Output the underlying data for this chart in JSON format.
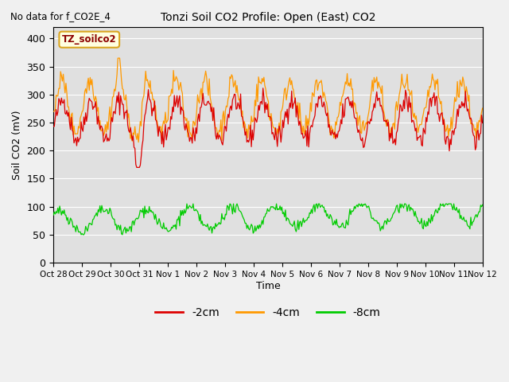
{
  "title": "Tonzi Soil CO2 Profile: Open (East) CO2",
  "subtitle": "No data for f_CO2E_4",
  "ylabel": "Soil CO2 (mV)",
  "xlabel": "Time",
  "legend_label": "TZ_soilco2",
  "line_labels": [
    "-2cm",
    "-4cm",
    "-8cm"
  ],
  "line_colors": [
    "#dd0000",
    "#ff9900",
    "#00cc00"
  ],
  "ylim": [
    0,
    420
  ],
  "yticks": [
    0,
    50,
    100,
    150,
    200,
    250,
    300,
    350,
    400
  ],
  "xtick_positions": [
    0,
    1,
    2,
    3,
    4,
    5,
    6,
    7,
    8,
    9,
    10,
    11,
    12,
    13,
    14,
    15
  ],
  "xtick_labels": [
    "Oct 28",
    "Oct 29",
    "Oct 30",
    "Oct 31",
    "Nov 1",
    "Nov 2",
    "Nov 3",
    "Nov 4",
    "Nov 5",
    "Nov 6",
    "Nov 7",
    "Nov 8",
    "Nov 9",
    "Nov 10",
    "Nov 11",
    "Nov 12"
  ],
  "n_points": 480,
  "seed": 42
}
